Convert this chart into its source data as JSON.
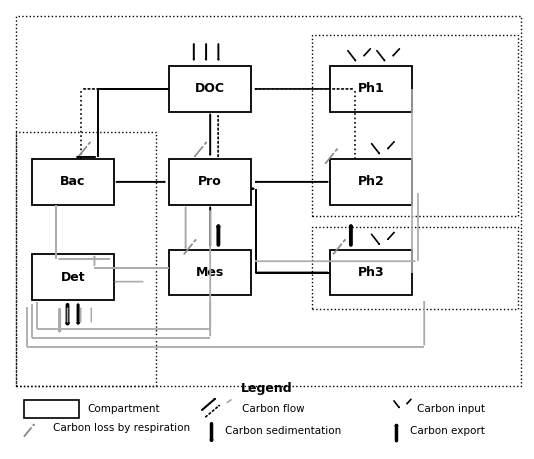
{
  "bg_color": "#ffffff",
  "fig_width": 5.34,
  "fig_height": 4.59,
  "dpi": 100,
  "boxes": {
    "DOC": [
      0.315,
      0.76,
      0.155,
      0.1
    ],
    "Ph1": [
      0.62,
      0.76,
      0.155,
      0.1
    ],
    "Bac": [
      0.055,
      0.555,
      0.155,
      0.1
    ],
    "Pro": [
      0.315,
      0.555,
      0.155,
      0.1
    ],
    "Ph2": [
      0.62,
      0.555,
      0.155,
      0.1
    ],
    "Mes": [
      0.315,
      0.355,
      0.155,
      0.1
    ],
    "Ph3": [
      0.62,
      0.355,
      0.155,
      0.1
    ],
    "Det": [
      0.055,
      0.345,
      0.155,
      0.1
    ]
  },
  "gray": "#aaaaaa",
  "dark": "#333333",
  "outer_dashed": [
    0.025,
    0.155,
    0.955,
    0.815
  ],
  "dashed_Ph1Ph2": [
    0.585,
    0.53,
    0.39,
    0.4
  ],
  "dashed_Ph3": [
    0.585,
    0.325,
    0.39,
    0.18
  ],
  "dashed_DetBac": [
    0.025,
    0.155,
    0.265,
    0.56
  ]
}
